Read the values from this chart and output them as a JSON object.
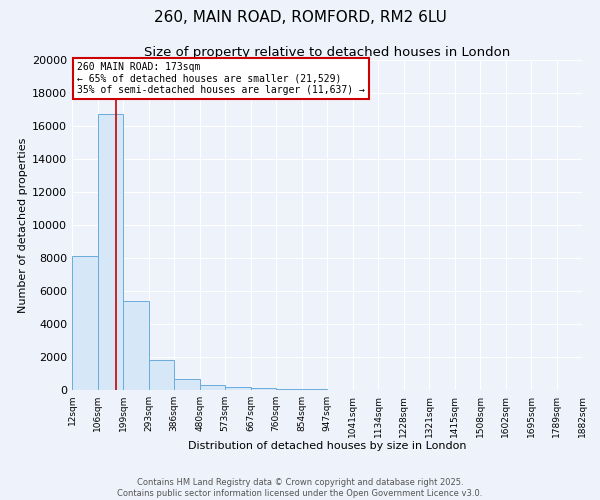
{
  "title1": "260, MAIN ROAD, ROMFORD, RM2 6LU",
  "title2": "Size of property relative to detached houses in London",
  "xlabel": "Distribution of detached houses by size in London",
  "ylabel": "Number of detached properties",
  "bar_heights": [
    8100,
    16700,
    5400,
    1800,
    650,
    280,
    200,
    150,
    80,
    50,
    30,
    20,
    15,
    10,
    8,
    5,
    4,
    3,
    2,
    1
  ],
  "bin_edges": [
    12,
    106,
    199,
    293,
    386,
    480,
    573,
    667,
    760,
    854,
    947,
    1041,
    1134,
    1228,
    1321,
    1415,
    1508,
    1602,
    1695,
    1789,
    1882
  ],
  "bar_color": "#d6e8f7",
  "bar_edge_color": "#6aacdc",
  "red_line_x": 173,
  "ylim": [
    0,
    20000
  ],
  "yticks": [
    0,
    2000,
    4000,
    6000,
    8000,
    10000,
    12000,
    14000,
    16000,
    18000,
    20000
  ],
  "annotation_title": "260 MAIN ROAD: 173sqm",
  "annotation_line1": "← 65% of detached houses are smaller (21,529)",
  "annotation_line2": "35% of semi-detached houses are larger (11,637) →",
  "annotation_box_color": "#ffffff",
  "annotation_border_color": "#cc0000",
  "footer1": "Contains HM Land Registry data © Crown copyright and database right 2025.",
  "footer2": "Contains public sector information licensed under the Open Government Licence v3.0.",
  "background_color": "#eef2fa",
  "grid_color": "#ffffff",
  "title1_fontsize": 11,
  "title2_fontsize": 9.5,
  "ylabel_fontsize": 8,
  "xlabel_fontsize": 8,
  "ytick_fontsize": 8,
  "xtick_fontsize": 6.5
}
